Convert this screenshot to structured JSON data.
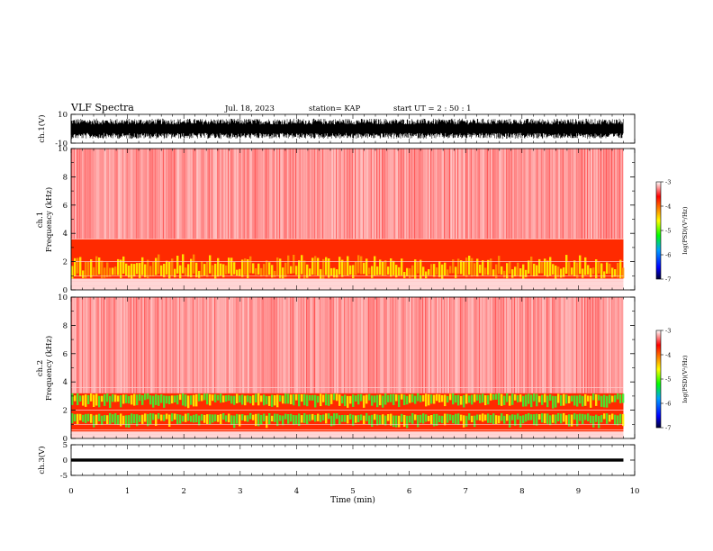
{
  "header": {
    "title": "VLF Spectra",
    "date": "Jul. 18, 2023",
    "station": "station= KAP",
    "start": "start UT =  2 : 50 : 1"
  },
  "chart_data": [
    {
      "type": "line",
      "panel": "ch1-waveform",
      "ylabel": "ch.1(V)",
      "ylim": [
        -10,
        10
      ],
      "ytick_labels": [
        "10",
        "-10"
      ],
      "description_values": {
        "approx_range": [
          -7,
          7
        ]
      }
    },
    {
      "type": "heatmap",
      "panel": "ch1-spectrogram",
      "ylabel_line1": "ch.1",
      "ylabel_line2": "Frequency (kHz)",
      "ylim": [
        0,
        10
      ],
      "ytick_labels": [
        "0",
        "2",
        "4",
        "6",
        "8",
        "10"
      ],
      "intense_band_khz": [
        0.8,
        3.6
      ],
      "colorbar": {
        "label": "log(PSD)(V²/Hz)",
        "range": [
          -7,
          -3
        ],
        "tick_labels": [
          "-3",
          "-4",
          "-5",
          "-6",
          "-7"
        ]
      }
    },
    {
      "type": "heatmap",
      "panel": "ch2-spectrogram",
      "ylabel_line1": "ch.2",
      "ylabel_line2": "Frequency (kHz)",
      "ylim": [
        0,
        10
      ],
      "ytick_labels": [
        "0",
        "2",
        "4",
        "6",
        "8",
        "10"
      ],
      "intense_band_khz": [
        0.5,
        3.2
      ],
      "colorbar": {
        "label": "log(PSD)(V²/Hz)",
        "range": [
          -7,
          -3
        ],
        "tick_labels": [
          "-3",
          "-4",
          "-5",
          "-6",
          "-7"
        ]
      }
    },
    {
      "type": "line",
      "panel": "ch3-waveform",
      "ylabel": "ch.3(V)",
      "ylim": [
        -5,
        5
      ],
      "ytick_labels": [
        "5",
        "0",
        "-5"
      ],
      "description_values": {
        "approx_range": [
          -0.5,
          0.5
        ]
      }
    }
  ],
  "xaxis": {
    "label": "Time (min)",
    "xlim": [
      0,
      10
    ],
    "data_end": 9.8,
    "tick_labels": [
      "0",
      "1",
      "2",
      "3",
      "4",
      "5",
      "6",
      "7",
      "8",
      "9",
      "10"
    ]
  },
  "colors": {
    "red": "#ff0000",
    "orange": "#ff9900",
    "yellow": "#ffff00",
    "green": "#00ff00",
    "blue": "#0000ff",
    "navy": "#000066",
    "black": "#000000"
  }
}
